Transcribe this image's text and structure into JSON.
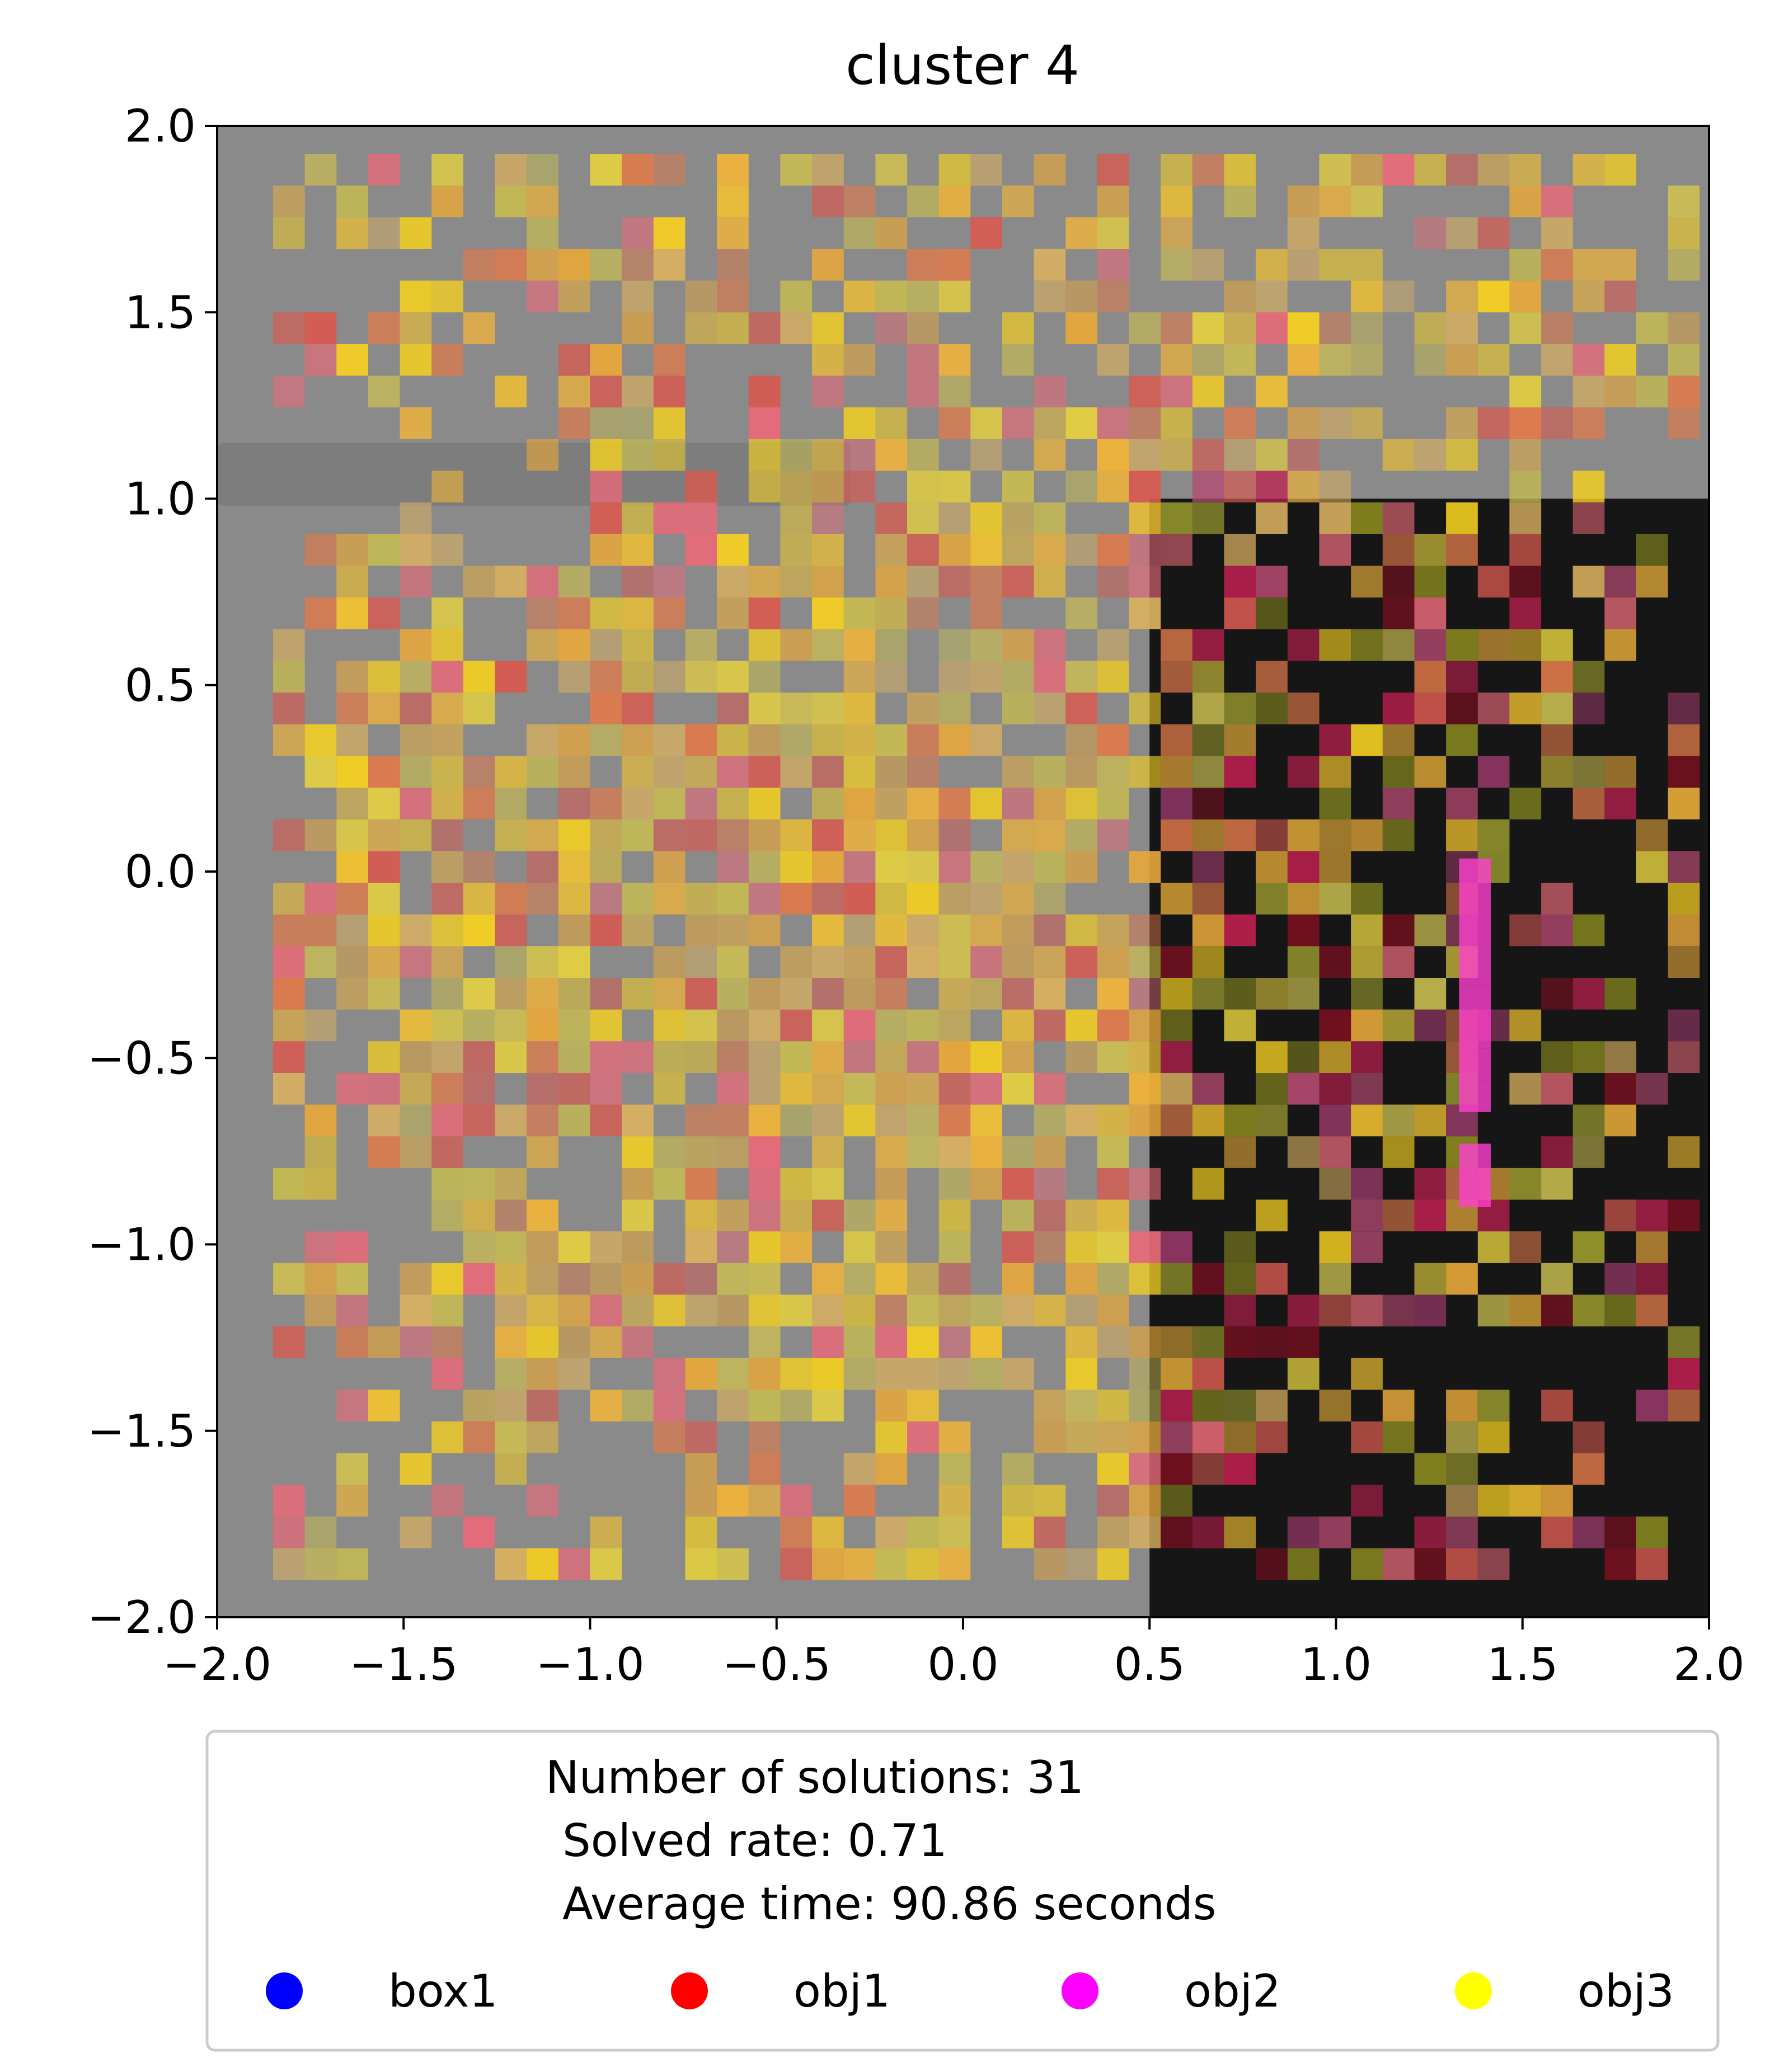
{
  "chart_data": {
    "type": "heatmap",
    "title": "cluster 4",
    "xlabel": "",
    "ylabel": "",
    "xlim": [
      -2.0,
      2.0
    ],
    "ylim": [
      -2.0,
      2.0
    ],
    "x_ticks": [
      "−2.0",
      "−1.5",
      "−1.0",
      "−0.5",
      "0.0",
      "0.5",
      "1.0",
      "1.5",
      "2.0"
    ],
    "y_ticks": [
      "2.0",
      "1.5",
      "1.0",
      "0.5",
      "0.0",
      "−0.5",
      "−1.0",
      "−1.5",
      "−2.0"
    ],
    "x_tick_values": [
      -2.0,
      -1.5,
      -1.0,
      -0.5,
      0.0,
      0.5,
      1.0,
      1.5,
      2.0
    ],
    "y_tick_values": [
      2.0,
      1.5,
      1.0,
      0.5,
      0.0,
      -0.5,
      -1.0,
      -1.5,
      -2.0
    ],
    "grid": false,
    "legend": {
      "placement": "below",
      "stats_lines": [
        "Number of solutions: 31",
        "Solved rate: 0.71",
        "Average time: 90.86 seconds"
      ],
      "entries": [
        {
          "name": "box1",
          "color": "#0000ff"
        },
        {
          "name": "obj1",
          "color": "#ff0000"
        },
        {
          "name": "obj2",
          "color": "#ff00ff"
        },
        {
          "name": "obj3",
          "color": "#ffff00"
        }
      ]
    },
    "background": {
      "floor_color": "#8a8a8a",
      "dark_region": {
        "x": [
          0.5,
          2.0
        ],
        "y": [
          -2.0,
          1.0
        ],
        "color": "#161616"
      },
      "bar": {
        "x": [
          -2.0,
          -0.3
        ],
        "y": [
          0.98,
          1.15
        ],
        "color": "#7d7d7d"
      }
    },
    "objects": [
      {
        "name": "box1",
        "color": "#0000ff"
      },
      {
        "name": "obj1",
        "color": "#ff0000"
      },
      {
        "name": "obj2",
        "color": "#ff00ff"
      },
      {
        "name": "obj3",
        "color": "#ffff00"
      }
    ]
  }
}
